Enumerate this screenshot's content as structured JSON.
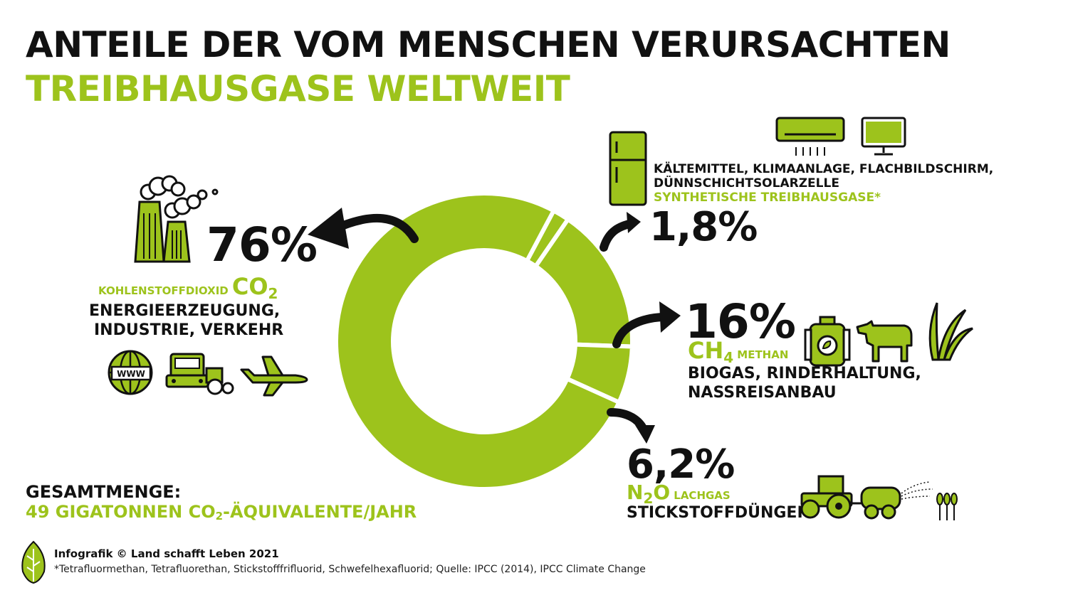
{
  "header": {
    "title_line1": "ANTEILE DER VOM MENSCHEN VERURSACHTEN",
    "title_line2": "TREIBHAUSGASE WELTWEIT"
  },
  "colors": {
    "accent": "#9dc31c",
    "dark": "#111111",
    "background": "#ffffff"
  },
  "co2": {
    "percent": "76%",
    "name": "KOHLENSTOFFDIOXID",
    "formula_main": "CO",
    "formula_sub": "2",
    "sources_line1": "ENERGIEERZEUGUNG,",
    "sources_line2": "INDUSTRIE, VERKEHR",
    "icons": [
      "factory-icon",
      "globe-www-icon",
      "bus-icon",
      "tractor-icon",
      "airplane-icon"
    ],
    "www_text": "WWW"
  },
  "synthetic": {
    "percent": "1,8%",
    "sources_line1": "KÄLTEMITTEL, KLIMAANLAGE, FLACHBILDSCHIRM,",
    "sources_line2": "DÜNNSCHICHTSOLARZELLE",
    "name": "SYNTHETISCHE TREIBHAUSGASE*",
    "icons": [
      "fridge-icon",
      "air-conditioner-icon",
      "monitor-icon"
    ]
  },
  "ch4": {
    "percent": "16%",
    "formula_main": "CH",
    "formula_sub": "4",
    "name": "METHAN",
    "sources_line1": "BIOGAS, RINDERHALTUNG,",
    "sources_line2": "NASSREISANBAU",
    "icons": [
      "biogas-tank-icon",
      "cow-icon",
      "rice-plant-icon"
    ]
  },
  "n2o": {
    "percent": "6,2%",
    "formula_a": "N",
    "formula_sub": "2",
    "formula_b": "O",
    "name": "LACHGAS",
    "sources": "STICKSTOFFDÜNGER",
    "icons": [
      "tractor-sprayer-icon",
      "wheat-icon"
    ]
  },
  "total": {
    "label": "GESAMTMENGE:",
    "value_a": "49 GIGATONNEN CO",
    "value_sub": "2",
    "value_b": "-ÄQUIVALENTE/JAHR"
  },
  "footer": {
    "credit": "Infografik © Land schafft Leben 2021",
    "note": "*Tetrafluormethan, Tetrafluorethan, Stickstofffrifluorid, Schwefelhexafluorid; Quelle: IPCC (2014), IPCC Climate Change"
  },
  "chart_data": {
    "type": "pie",
    "donut": true,
    "categories": [
      "Synthetische Treibhausgase",
      "CH4",
      "N2O",
      "CO2"
    ],
    "values": [
      1.8,
      16,
      6.2,
      76
    ],
    "color": "#9dc31c",
    "separator_color": "#ffffff"
  }
}
